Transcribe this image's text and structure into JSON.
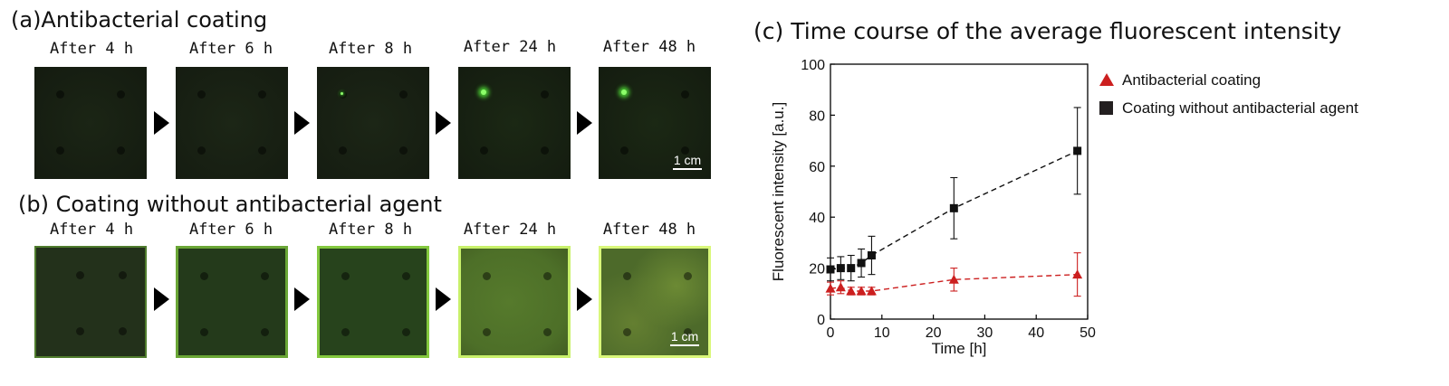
{
  "panel_a": {
    "title": "(a)Antibacterial coating",
    "labels": [
      "After 4 h",
      "After 6 h",
      "After 8 h",
      "After 24 h",
      "After 48 h"
    ],
    "scalebar": "1 cm"
  },
  "panel_b": {
    "title": "(b) Coating without antibacterial agent",
    "labels": [
      "After 4 h",
      "After 6 h",
      "After 8 h",
      "After 24 h",
      "After 48 h"
    ],
    "scalebar": "1 cm"
  },
  "chart_data": {
    "type": "line",
    "title": "(c) Time course of the average fluorescent intensity",
    "xlabel": "Time [h]",
    "ylabel": "Fluorescent intensity [a.u.]",
    "xlim": [
      0,
      50
    ],
    "ylim": [
      0,
      100
    ],
    "xticks": [
      0,
      10,
      20,
      30,
      40,
      50
    ],
    "yticks": [
      0,
      20,
      40,
      60,
      80,
      100
    ],
    "legend_position": "right",
    "series": [
      {
        "name": "Antibacterial coating",
        "marker": "triangle",
        "color": "#cc1f1f",
        "x": [
          0,
          2,
          4,
          6,
          8,
          24,
          48
        ],
        "y": [
          12,
          12.5,
          11,
          11,
          11,
          15.5,
          17.5
        ],
        "err": [
          2.5,
          2.5,
          1.5,
          1.5,
          1.5,
          4.5,
          8.5
        ]
      },
      {
        "name": "Coating without antibacterial agent",
        "marker": "square",
        "color": "#111111",
        "x": [
          0,
          2,
          4,
          6,
          8,
          24,
          48
        ],
        "y": [
          19.5,
          20,
          20,
          22,
          25,
          43.5,
          66
        ],
        "err": [
          4.5,
          4.5,
          5,
          5.5,
          7.5,
          12,
          17
        ]
      }
    ]
  }
}
